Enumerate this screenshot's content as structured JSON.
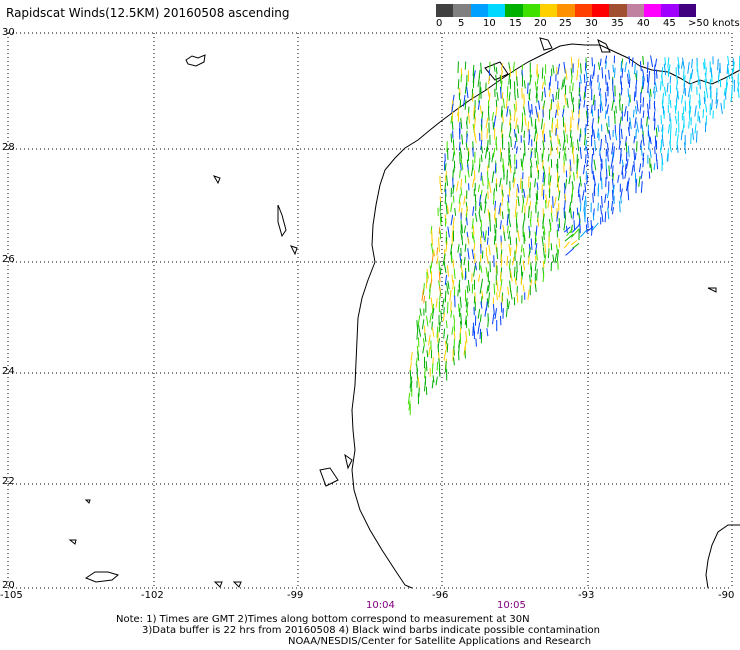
{
  "title": "Rapidscat Winds(12.5KM) 20160508 ascending",
  "colorbar": {
    "colors": [
      "#404040",
      "#808080",
      "#00a0ff",
      "#00d8ff",
      "#00b000",
      "#40e000",
      "#ffd000",
      "#ff9000",
      "#ff4000",
      "#ff0000",
      "#a05030",
      "#c080a0",
      "#ff00ff",
      "#a000ff",
      "#400080"
    ],
    "labels": [
      "0",
      "5",
      "10",
      "15",
      "20",
      "25",
      "30",
      "35",
      "40",
      "45",
      ">50 knots"
    ]
  },
  "axes": {
    "lon_labels": [
      "-105",
      "-102",
      "-99",
      "-96",
      "-93",
      "-90"
    ],
    "lat_labels": [
      "30",
      "28",
      "26",
      "24",
      "22",
      "20"
    ]
  },
  "pass_times": [
    "10:04",
    "10:05"
  ],
  "notes": {
    "line1": "Note: 1) Times are GMT 2)Times along bottom correspond to measurement at 30N",
    "line2": "3)Data buffer is 22 hrs from 20160508 4) Black wind barbs indicate possible contamination",
    "line3": "NOAA/NESDIS/Center for Satellite Applications and Research"
  }
}
